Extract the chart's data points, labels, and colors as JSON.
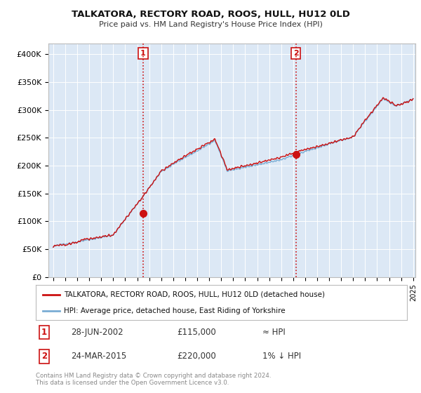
{
  "title": "TALKATORA, RECTORY ROAD, ROOS, HULL, HU12 0LD",
  "subtitle": "Price paid vs. HM Land Registry's House Price Index (HPI)",
  "ylim": [
    0,
    420000
  ],
  "yticks": [
    0,
    50000,
    100000,
    150000,
    200000,
    250000,
    300000,
    350000,
    400000
  ],
  "ytick_labels": [
    "£0",
    "£50K",
    "£100K",
    "£150K",
    "£200K",
    "£250K",
    "£300K",
    "£350K",
    "£400K"
  ],
  "hpi_color": "#7aadd4",
  "sale_color": "#cc1111",
  "vline_color": "#cc1111",
  "plot_bg": "#dce8f5",
  "legend_label_sale": "TALKATORA, RECTORY ROAD, ROOS, HULL, HU12 0LD (detached house)",
  "legend_label_hpi": "HPI: Average price, detached house, East Riding of Yorkshire",
  "annotation1_date": "28-JUN-2002",
  "annotation1_price": "£115,000",
  "annotation1_hpi": "≈ HPI",
  "annotation2_date": "24-MAR-2015",
  "annotation2_price": "£220,000",
  "annotation2_hpi": "1% ↓ HPI",
  "footer": "Contains HM Land Registry data © Crown copyright and database right 2024.\nThis data is licensed under the Open Government Licence v3.0.",
  "sale1_x": 2002.49,
  "sale1_y": 115000,
  "sale2_x": 2015.23,
  "sale2_y": 220000,
  "xlim_left": 1994.6,
  "xlim_right": 2025.2
}
